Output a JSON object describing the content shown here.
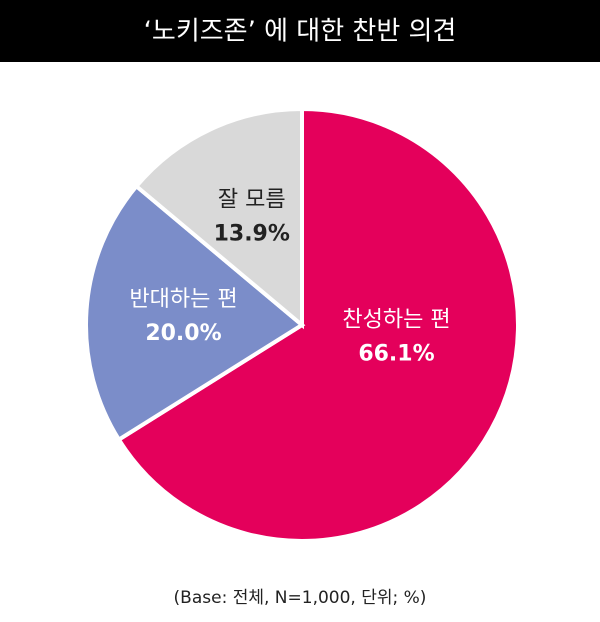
{
  "chart_data": {
    "type": "pie",
    "title": "‘노키즈존’ 에 대한 찬반 의견",
    "categories": [
      "찬성하는 편",
      "반대하는 편",
      "잘 모름"
    ],
    "values": [
      66.1,
      20.0,
      13.9
    ],
    "value_labels": [
      "66.1%",
      "20.0%",
      "13.9%"
    ],
    "colors": [
      "#e4005b",
      "#7b8dc9",
      "#d9d9d9"
    ],
    "label_colors": [
      "#ffffff",
      "#ffffff",
      "#222222"
    ],
    "footnote": "(Base: 전체, N=1,000, 단위; %)"
  }
}
